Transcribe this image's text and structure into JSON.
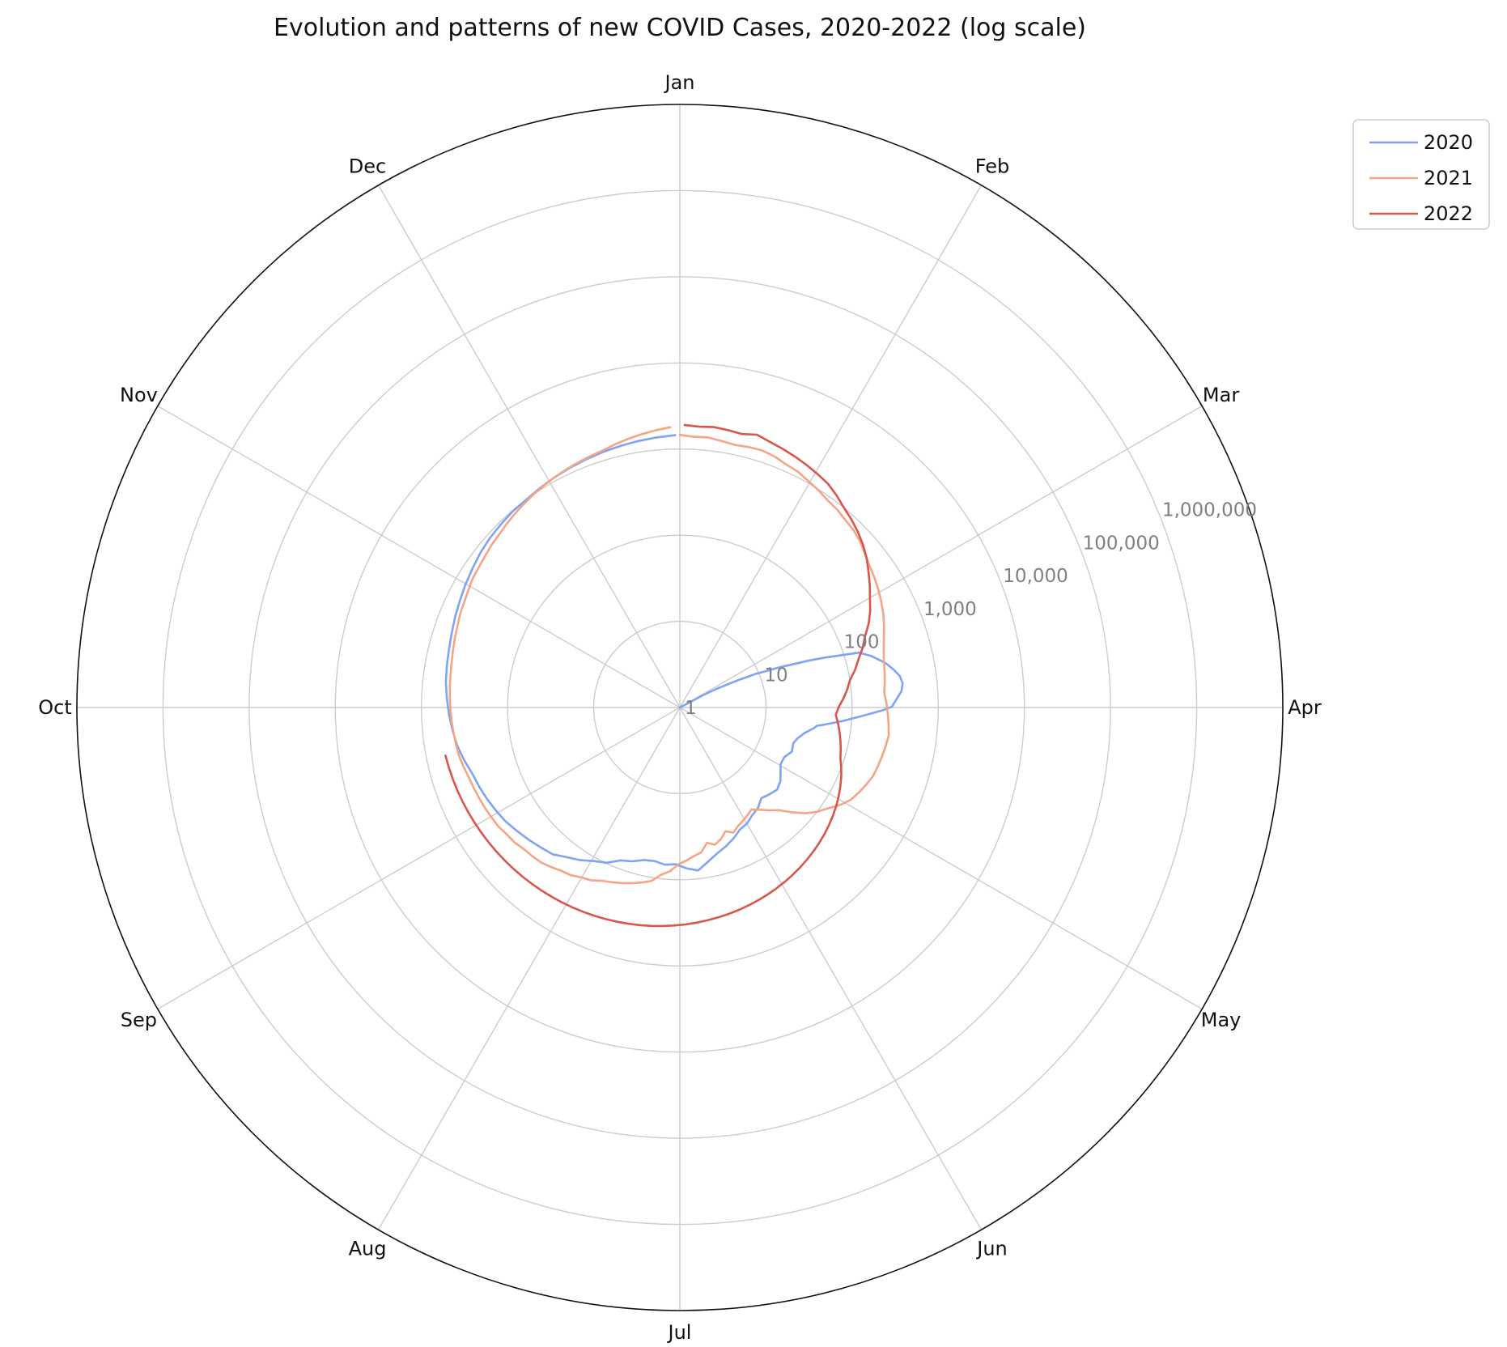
{
  "chart_data": {
    "type": "line",
    "projection": "polar",
    "title": "Evolution and patterns of new COVID Cases, 2020-2022 (log scale)",
    "angular_axis": {
      "labels": [
        "Jan",
        "Feb",
        "Mar",
        "Apr",
        "May",
        "Jun",
        "Jul",
        "Aug",
        "Sep",
        "Oct",
        "Nov",
        "Dec"
      ],
      "direction": "clockwise",
      "zero_location": "top"
    },
    "radial_axis": {
      "scale": "log",
      "range": [
        1,
        10000000
      ],
      "tick_values": [
        1,
        10,
        100,
        1000,
        10000,
        100000,
        1000000
      ],
      "tick_labels": [
        "1",
        "10",
        "100",
        "1,000",
        "10,000",
        "100,000",
        "1,000,000"
      ]
    },
    "grid": true,
    "legend": {
      "position": "right-top",
      "entries": [
        "2020",
        "2021",
        "2022"
      ]
    },
    "series": [
      {
        "name": "2020",
        "color": "#7fa3f5",
        "points": [
          [
            63,
            1
          ],
          [
            64,
            2
          ],
          [
            65,
            3
          ],
          [
            66,
            4
          ],
          [
            67,
            6
          ],
          [
            68,
            9
          ],
          [
            69,
            12
          ],
          [
            70,
            18
          ],
          [
            71,
            25
          ],
          [
            72,
            40
          ],
          [
            73,
            60
          ],
          [
            74,
            90
          ],
          [
            75,
            150
          ],
          [
            77,
            200
          ],
          [
            79,
            250
          ],
          [
            80,
            280
          ],
          [
            82,
            330
          ],
          [
            84,
            380
          ],
          [
            86,
            400
          ],
          [
            88,
            380
          ],
          [
            90,
            330
          ],
          [
            92,
            290
          ],
          [
            93,
            230
          ],
          [
            95,
            130
          ],
          [
            97,
            80
          ],
          [
            99,
            50
          ],
          [
            100,
            40
          ],
          [
            101,
            38
          ],
          [
            104,
            30
          ],
          [
            107,
            26
          ],
          [
            110,
            24
          ],
          [
            114,
            25
          ],
          [
            118,
            22
          ],
          [
            122,
            22
          ],
          [
            126,
            25
          ],
          [
            129,
            28
          ],
          [
            133,
            30
          ],
          [
            137,
            28
          ],
          [
            141,
            26
          ],
          [
            145,
            30
          ],
          [
            149,
            32
          ],
          [
            153,
            36
          ],
          [
            157,
            38
          ],
          [
            161,
            44
          ],
          [
            165,
            50
          ],
          [
            169,
            56
          ],
          [
            173,
            66
          ],
          [
            177,
            80
          ],
          [
            181,
            74
          ],
          [
            185,
            66
          ],
          [
            189,
            68
          ],
          [
            193,
            64
          ],
          [
            197,
            66
          ],
          [
            201,
            74
          ],
          [
            205,
            80
          ],
          [
            209,
            98
          ],
          [
            213,
            110
          ],
          [
            217,
            130
          ],
          [
            221,
            150
          ],
          [
            225,
            180
          ],
          [
            229,
            195
          ],
          [
            233,
            215
          ],
          [
            237,
            235
          ],
          [
            241,
            260
          ],
          [
            245,
            280
          ],
          [
            249,
            300
          ],
          [
            253,
            320
          ],
          [
            257,
            340
          ],
          [
            261,
            380
          ],
          [
            265,
            420
          ],
          [
            269,
            450
          ],
          [
            273,
            480
          ],
          [
            277,
            510
          ],
          [
            281,
            540
          ],
          [
            285,
            560
          ],
          [
            289,
            580
          ],
          [
            293,
            610
          ],
          [
            297,
            650
          ],
          [
            301,
            690
          ],
          [
            305,
            740
          ],
          [
            309,
            790
          ],
          [
            313,
            850
          ],
          [
            317,
            900
          ],
          [
            321,
            940
          ],
          [
            325,
            980
          ],
          [
            329,
            1000
          ],
          [
            333,
            1050
          ],
          [
            337,
            1100
          ],
          [
            341,
            1150
          ],
          [
            345,
            1200
          ],
          [
            349,
            1250
          ],
          [
            353,
            1300
          ],
          [
            357,
            1350
          ],
          [
            361,
            1400
          ],
          [
            365,
            1450
          ]
        ]
      },
      {
        "name": "2021",
        "color": "#f6a584",
        "points": [
          [
            1,
            1460
          ],
          [
            4,
            1400
          ],
          [
            7,
            1420
          ],
          [
            10,
            1350
          ],
          [
            13,
            1300
          ],
          [
            16,
            1340
          ],
          [
            19,
            1360
          ],
          [
            22,
            1300
          ],
          [
            25,
            1200
          ],
          [
            28,
            1150
          ],
          [
            31,
            1050
          ],
          [
            34,
            980
          ],
          [
            37,
            900
          ],
          [
            40,
            860
          ],
          [
            43,
            800
          ],
          [
            46,
            760
          ],
          [
            49,
            700
          ],
          [
            52,
            620
          ],
          [
            55,
            560
          ],
          [
            58,
            520
          ],
          [
            61,
            480
          ],
          [
            64,
            440
          ],
          [
            67,
            400
          ],
          [
            70,
            360
          ],
          [
            73,
            320
          ],
          [
            76,
            290
          ],
          [
            79,
            270
          ],
          [
            82,
            260
          ],
          [
            85,
            250
          ],
          [
            88,
            240
          ],
          [
            91,
            250
          ],
          [
            94,
            260
          ],
          [
            97,
            270
          ],
          [
            100,
            280
          ],
          [
            103,
            270
          ],
          [
            106,
            260
          ],
          [
            109,
            250
          ],
          [
            112,
            240
          ],
          [
            115,
            220
          ],
          [
            118,
            200
          ],
          [
            121,
            180
          ],
          [
            124,
            150
          ],
          [
            127,
            120
          ],
          [
            130,
            100
          ],
          [
            133,
            80
          ],
          [
            136,
            60
          ],
          [
            139,
            45
          ],
          [
            142,
            38
          ],
          [
            145,
            32
          ],
          [
            148,
            28
          ],
          [
            151,
            30
          ],
          [
            154,
            32
          ],
          [
            157,
            34
          ],
          [
            160,
            38
          ],
          [
            163,
            34
          ],
          [
            166,
            40
          ],
          [
            169,
            44
          ],
          [
            172,
            40
          ],
          [
            175,
            50
          ],
          [
            178,
            54
          ],
          [
            181,
            60
          ],
          [
            184,
            66
          ],
          [
            187,
            80
          ],
          [
            190,
            90
          ],
          [
            193,
            110
          ],
          [
            196,
            120
          ],
          [
            199,
            130
          ],
          [
            202,
            140
          ],
          [
            205,
            150
          ],
          [
            208,
            160
          ],
          [
            211,
            180
          ],
          [
            214,
            190
          ],
          [
            217,
            210
          ],
          [
            220,
            220
          ],
          [
            223,
            240
          ],
          [
            226,
            260
          ],
          [
            229,
            270
          ],
          [
            232,
            280
          ],
          [
            235,
            300
          ],
          [
            238,
            310
          ],
          [
            241,
            330
          ],
          [
            244,
            340
          ],
          [
            247,
            350
          ],
          [
            250,
            360
          ],
          [
            253,
            370
          ],
          [
            256,
            380
          ],
          [
            259,
            400
          ],
          [
            262,
            420
          ],
          [
            265,
            430
          ],
          [
            268,
            440
          ],
          [
            271,
            450
          ],
          [
            274,
            460
          ],
          [
            277,
            470
          ],
          [
            280,
            480
          ],
          [
            283,
            490
          ],
          [
            286,
            500
          ],
          [
            289,
            520
          ],
          [
            292,
            540
          ],
          [
            295,
            560
          ],
          [
            298,
            590
          ],
          [
            301,
            610
          ],
          [
            304,
            640
          ],
          [
            307,
            680
          ],
          [
            310,
            700
          ],
          [
            313,
            730
          ],
          [
            316,
            770
          ],
          [
            319,
            800
          ],
          [
            322,
            850
          ],
          [
            325,
            900
          ],
          [
            328,
            950
          ],
          [
            331,
            1000
          ],
          [
            334,
            1050
          ],
          [
            337,
            1100
          ],
          [
            340,
            1150
          ],
          [
            343,
            1200
          ],
          [
            346,
            1250
          ],
          [
            349,
            1300
          ],
          [
            352,
            1400
          ],
          [
            355,
            1500
          ],
          [
            358,
            1600
          ],
          [
            361,
            1700
          ],
          [
            364,
            1800
          ]
        ]
      },
      {
        "name": "2022",
        "color": "#d9564a",
        "points": [
          [
            2,
            1900
          ],
          [
            5,
            1850
          ],
          [
            8,
            1900
          ],
          [
            11,
            1850
          ],
          [
            14,
            1800
          ],
          [
            17,
            1950
          ],
          [
            20,
            1800
          ],
          [
            23,
            1700
          ],
          [
            26,
            1600
          ],
          [
            29,
            1500
          ],
          [
            32,
            1400
          ],
          [
            35,
            1300
          ],
          [
            38,
            1150
          ],
          [
            41,
            1000
          ],
          [
            44,
            900
          ],
          [
            47,
            800
          ],
          [
            50,
            700
          ],
          [
            53,
            600
          ],
          [
            56,
            500
          ],
          [
            59,
            420
          ],
          [
            62,
            350
          ],
          [
            65,
            300
          ],
          [
            68,
            250
          ],
          [
            71,
            200
          ],
          [
            74,
            170
          ],
          [
            77,
            140
          ],
          [
            80,
            120
          ],
          [
            83,
            100
          ],
          [
            86,
            90
          ],
          [
            89,
            80
          ],
          [
            92,
            70
          ],
          [
            95,
            65
          ],
          [
            98,
            70
          ],
          [
            101,
            75
          ],
          [
            104,
            80
          ],
          [
            107,
            85
          ],
          [
            110,
            90
          ],
          [
            113,
            100
          ],
          [
            116,
            110
          ],
          [
            119,
            120
          ],
          [
            122,
            130
          ],
          [
            125,
            140
          ],
          [
            128,
            150
          ],
          [
            131,
            160
          ],
          [
            134,
            170
          ],
          [
            137,
            180
          ],
          [
            140,
            190
          ],
          [
            143,
            200
          ],
          [
            146,
            210
          ],
          [
            149,
            220
          ],
          [
            152,
            230
          ],
          [
            155,
            240
          ],
          [
            158,
            250
          ],
          [
            161,
            260
          ],
          [
            164,
            270
          ],
          [
            167,
            280
          ],
          [
            170,
            290
          ],
          [
            173,
            300
          ],
          [
            176,
            310
          ],
          [
            179,
            320
          ],
          [
            182,
            330
          ],
          [
            185,
            340
          ],
          [
            188,
            350
          ],
          [
            191,
            360
          ],
          [
            194,
            370
          ],
          [
            197,
            380
          ],
          [
            200,
            390
          ],
          [
            203,
            400
          ],
          [
            206,
            410
          ],
          [
            209,
            420
          ],
          [
            212,
            430
          ],
          [
            215,
            440
          ],
          [
            218,
            450
          ],
          [
            221,
            460
          ],
          [
            224,
            470
          ],
          [
            227,
            480
          ],
          [
            230,
            490
          ],
          [
            233,
            500
          ],
          [
            236,
            510
          ],
          [
            239,
            520
          ],
          [
            242,
            530
          ],
          [
            245,
            540
          ],
          [
            248,
            550
          ],
          [
            251,
            560
          ],
          [
            254,
            570
          ],
          [
            257,
            580
          ],
          [
            260,
            590
          ],
          [
            263,
            600
          ]
        ]
      }
    ]
  }
}
